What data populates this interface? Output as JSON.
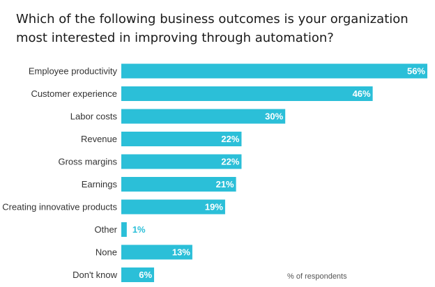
{
  "title": "Which of the following business outcomes is your organization most interested in improving through automation?",
  "note": "% of respondents",
  "colors": {
    "bar": "#2bbfd8",
    "label_inside": "#ffffff",
    "label_outside": "#2bbfd8"
  },
  "chart_data": {
    "type": "bar",
    "orientation": "horizontal",
    "categories": [
      "Employee productivity",
      "Customer experience",
      "Labor costs",
      "Revenue",
      "Gross margins",
      "Earnings",
      "Creating innovative products",
      "Other",
      "None",
      "Don't know"
    ],
    "values": [
      56,
      46,
      30,
      22,
      22,
      21,
      19,
      1,
      13,
      6
    ],
    "value_labels": [
      "56%",
      "46%",
      "30%",
      "22%",
      "22%",
      "21%",
      "19%",
      "1%",
      "13%",
      "6%"
    ],
    "xlim": [
      0,
      56
    ],
    "grid": false,
    "legend": "none"
  }
}
